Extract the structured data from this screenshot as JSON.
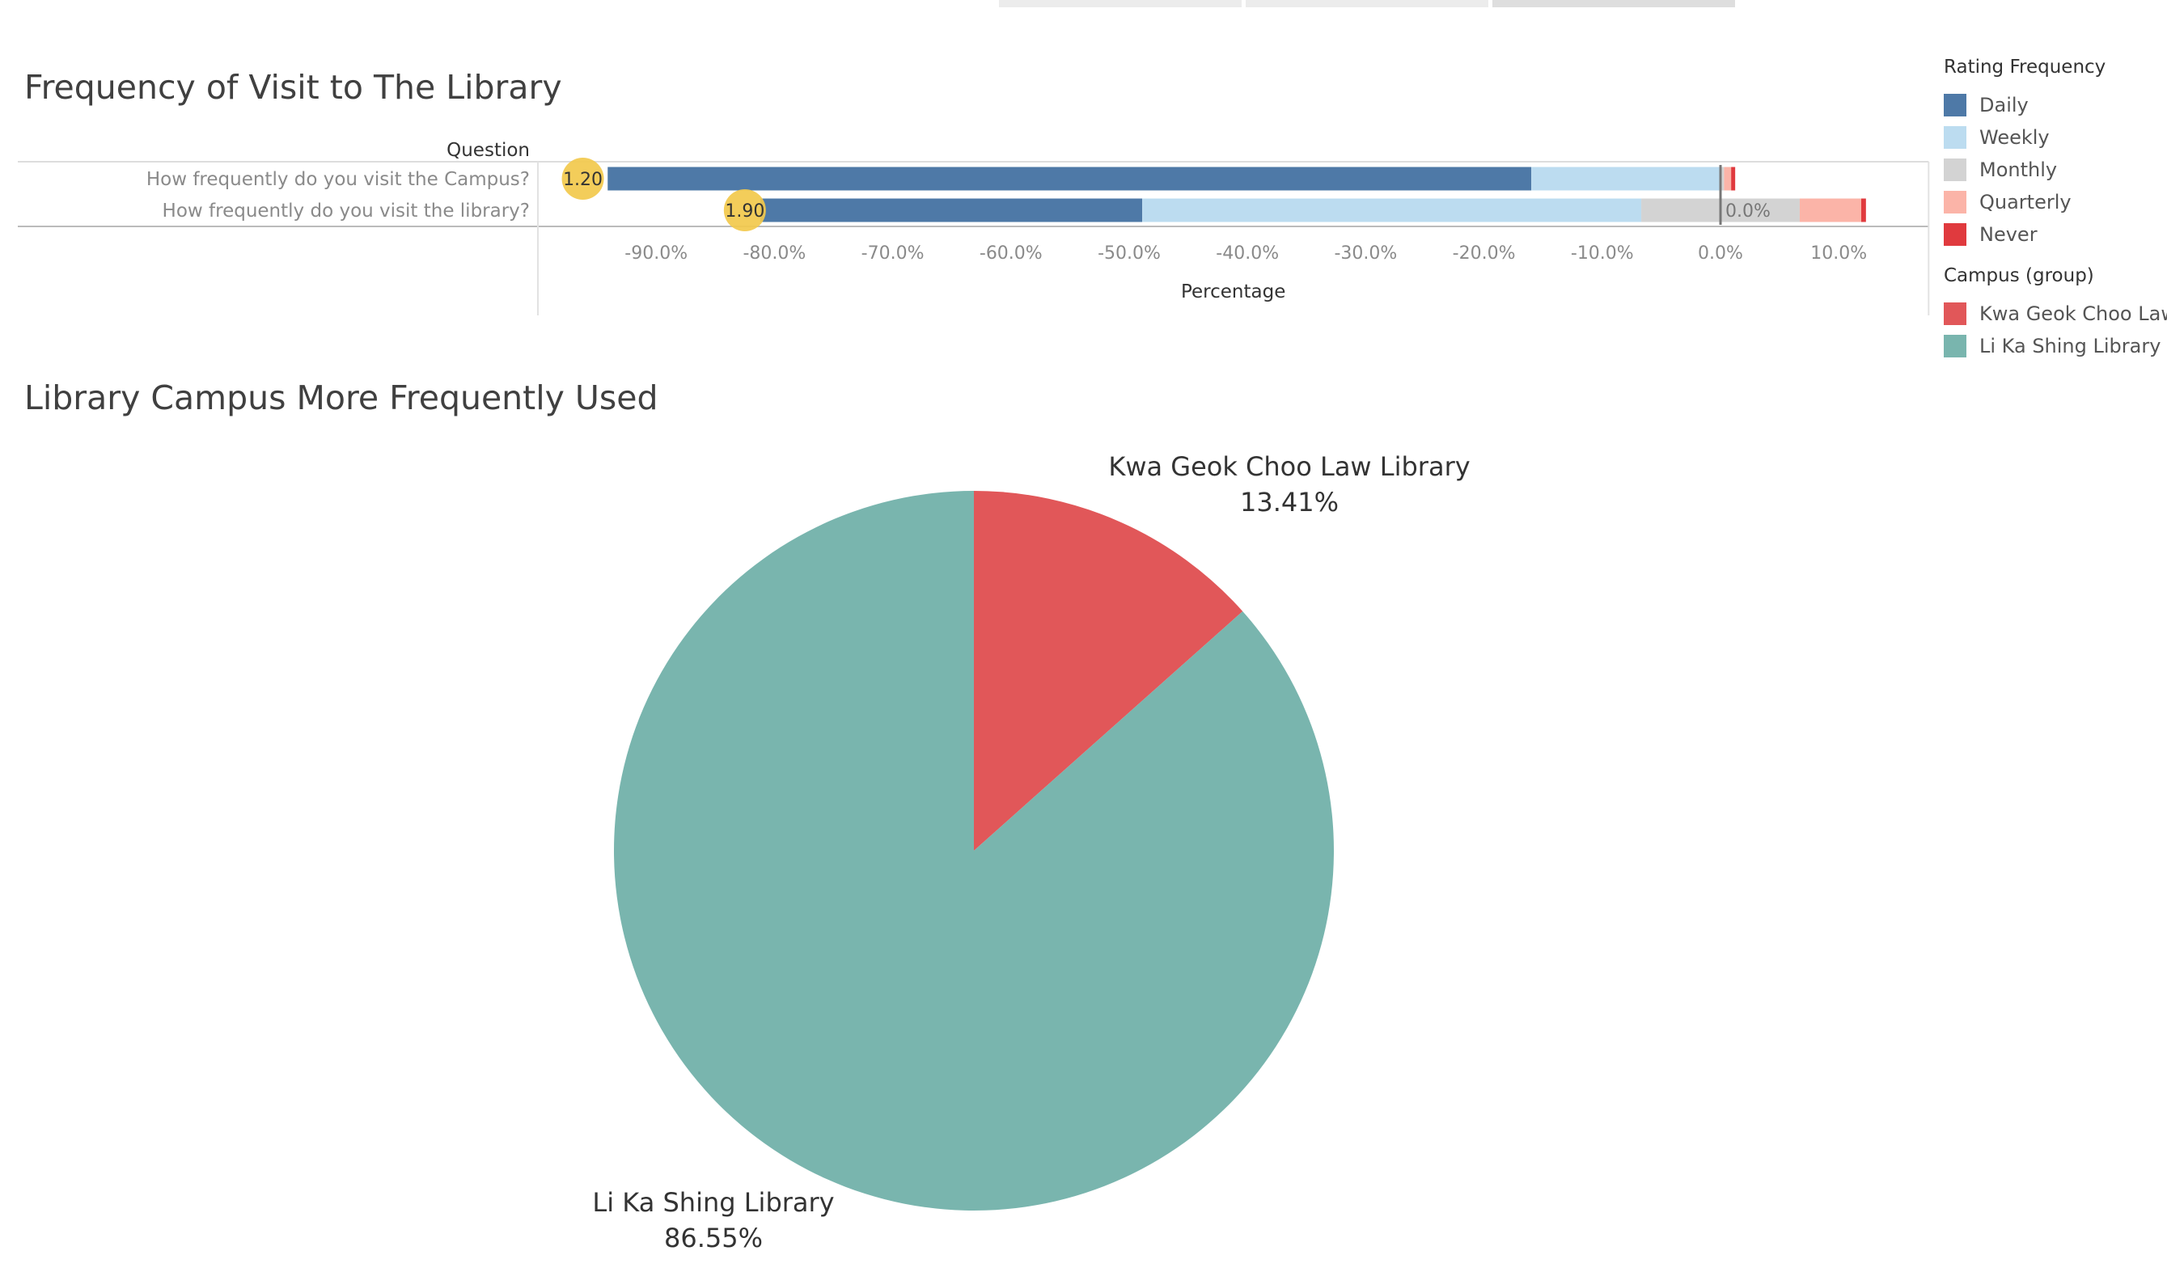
{
  "dashboard": {
    "bar_title": "Frequency of Visit to The Library",
    "pie_title": "Library Campus More Frequently Used"
  },
  "legend_rating": {
    "title": "Rating Frequency",
    "items": [
      {
        "label": "Daily",
        "color": "#4e79a7"
      },
      {
        "label": "Weekly",
        "color": "#bcdcf0"
      },
      {
        "label": "Monthly",
        "color": "#d3d3d3"
      },
      {
        "label": "Quarterly",
        "color": "#fbb4a8"
      },
      {
        "label": "Never",
        "color": "#e03a3e"
      }
    ]
  },
  "legend_campus": {
    "title": "Campus (group)",
    "items": [
      {
        "label": "Kwa Geok Choo Law ...",
        "color": "#e15759"
      },
      {
        "label": "Li Ka Shing Library",
        "color": "#79b5ae"
      }
    ]
  },
  "chart_data": [
    {
      "type": "bar",
      "orientation": "horizontal",
      "stacked": "diverging",
      "title": "Frequency of Visit to The Library",
      "ylabel": "Question",
      "xlabel": "Percentage",
      "categories": [
        "How frequently do you visit the Campus?",
        "How frequently do you visit the library?"
      ],
      "series": [
        {
          "name": "Daily",
          "color": "#4e79a7",
          "segments": [
            [
              -94.1,
              -16.0
            ],
            [
              -81.2,
              -48.9
            ]
          ]
        },
        {
          "name": "Weekly",
          "color": "#bcdcf0",
          "segments": [
            [
              -16.0,
              -0.1
            ],
            [
              -48.9,
              -6.7
            ]
          ]
        },
        {
          "name": "Monthly",
          "color": "#d3d3d3",
          "segments": [
            [
              -0.1,
              0.3
            ],
            [
              -6.7,
              6.7
            ]
          ]
        },
        {
          "name": "Quarterly",
          "color": "#fbb4a8",
          "segments": [
            [
              0.3,
              0.9
            ],
            [
              6.7,
              11.9
            ]
          ]
        },
        {
          "name": "Never",
          "color": "#e03a3e",
          "segments": [
            [
              0.9,
              0.9
            ],
            [
              11.9,
              12.3
            ]
          ]
        }
      ],
      "average_markers": {
        "values": [
          "1.20",
          "1.90"
        ],
        "x": [
          -96.2,
          -82.5
        ],
        "color": "#f2c94c"
      },
      "value_annotation": {
        "text": "0.0%",
        "row": 1,
        "x": 0.0
      },
      "xlim": [
        -100.0,
        17.6
      ],
      "xticks": [
        -90,
        -80,
        -70,
        -60,
        -50,
        -40,
        -30,
        -20,
        -10,
        0,
        10
      ],
      "xtick_labels": [
        "-90.0%",
        "-80.0%",
        "-70.0%",
        "-60.0%",
        "-50.0%",
        "-40.0%",
        "-30.0%",
        "-20.0%",
        "-10.0%",
        "0.0%",
        "10.0%"
      ],
      "reference_line": 0,
      "legend_position": "right"
    },
    {
      "type": "pie",
      "title": "Library Campus More Frequently Used",
      "slices": [
        {
          "name": "Kwa Geok Choo Law Library",
          "value": 13.41,
          "label": "13.41%",
          "color": "#e15759"
        },
        {
          "name": "Li Ka Shing Library",
          "value": 86.55,
          "label": "86.55%",
          "color": "#79b5ae"
        }
      ]
    }
  ]
}
